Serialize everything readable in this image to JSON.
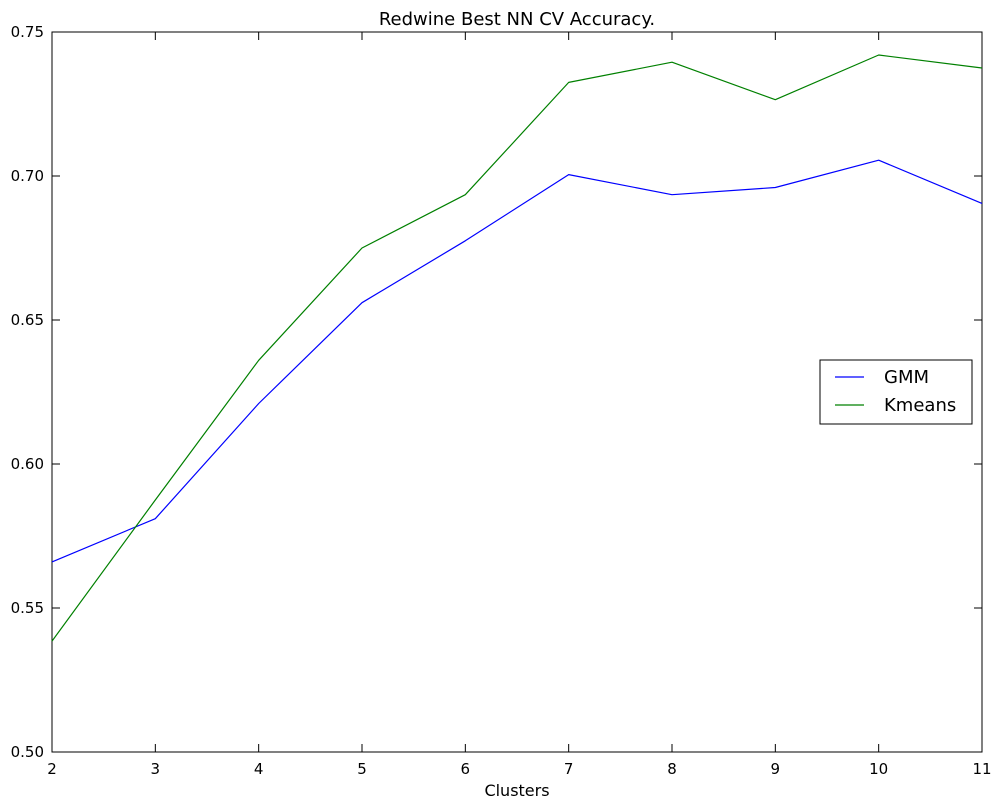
{
  "chart_data": {
    "type": "line",
    "title": "Redwine Best NN CV Accuracy.",
    "xlabel": "Clusters",
    "ylabel": "",
    "x": [
      2,
      3,
      4,
      5,
      6,
      7,
      8,
      9,
      10,
      11
    ],
    "xlim": [
      2,
      11
    ],
    "ylim": [
      0.5,
      0.75
    ],
    "xticks": [
      2,
      3,
      4,
      5,
      6,
      7,
      8,
      9,
      10,
      11
    ],
    "yticks": [
      "0.50",
      "0.55",
      "0.60",
      "0.65",
      "0.70",
      "0.75"
    ],
    "grid": false,
    "legend_position": "center-right",
    "series": [
      {
        "name": "GMM",
        "color": "#0000ff",
        "values": [
          0.566,
          0.581,
          0.621,
          0.656,
          0.6775,
          0.7005,
          0.6935,
          0.696,
          0.7055,
          0.6905
        ]
      },
      {
        "name": "Kmeans",
        "color": "#008000",
        "values": [
          0.5385,
          0.5875,
          0.636,
          0.675,
          0.6935,
          0.7325,
          0.7395,
          0.7265,
          0.742,
          0.7375
        ]
      }
    ]
  }
}
